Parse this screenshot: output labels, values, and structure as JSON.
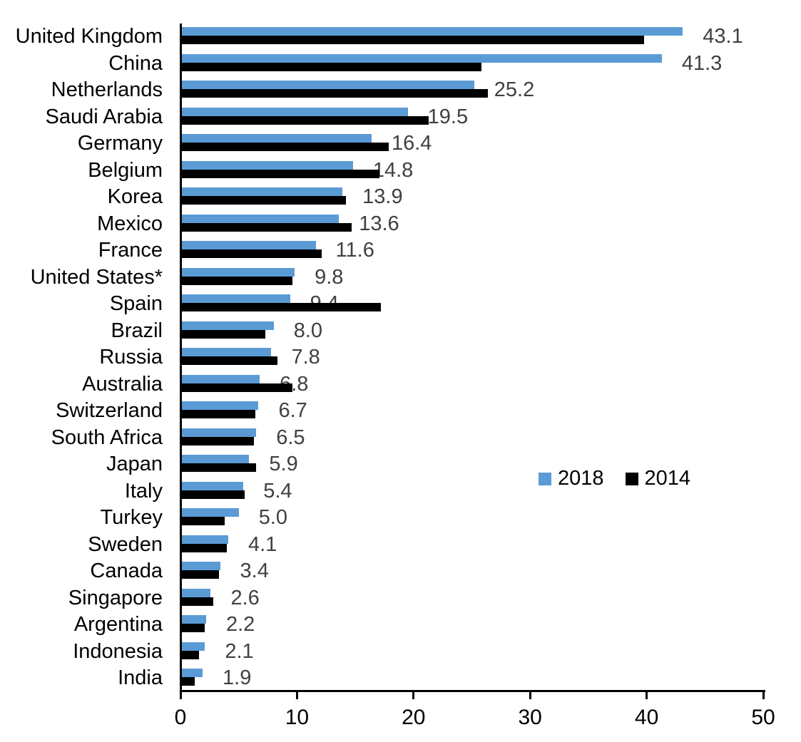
{
  "chart_data": {
    "type": "bar",
    "orientation": "horizontal",
    "title": "",
    "xlabel": "",
    "ylabel": "",
    "xlim": [
      0,
      50
    ],
    "x_ticks": [
      "0",
      "10",
      "20",
      "30",
      "40",
      "50"
    ],
    "grid": false,
    "legend_position": "middle-right",
    "categories": [
      "United Kingdom",
      "China",
      "Netherlands",
      "Saudi Arabia",
      "Germany",
      "Belgium",
      "Korea",
      "Mexico",
      "France",
      "United States*",
      "Spain",
      "Brazil",
      "Russia",
      "Australia",
      "Switzerland",
      "South Africa",
      "Japan",
      "Italy",
      "Turkey",
      "Sweden",
      "Canada",
      "Singapore",
      "Argentina",
      "Indonesia",
      "India"
    ],
    "series": [
      {
        "name": "2018",
        "color": "#5B9BD5",
        "values": [
          43.1,
          41.3,
          25.2,
          19.5,
          16.4,
          14.8,
          13.9,
          13.6,
          11.6,
          9.8,
          9.4,
          8.0,
          7.8,
          6.8,
          6.7,
          6.5,
          5.9,
          5.4,
          5.0,
          4.1,
          3.4,
          2.6,
          2.2,
          2.1,
          1.9
        ]
      },
      {
        "name": "2014",
        "color": "#000000",
        "values": [
          39.8,
          25.8,
          26.4,
          21.3,
          17.9,
          17.1,
          14.2,
          14.7,
          12.1,
          9.6,
          17.2,
          7.3,
          8.3,
          9.6,
          6.4,
          6.3,
          6.5,
          5.5,
          3.8,
          4.0,
          3.3,
          2.8,
          2.1,
          1.6,
          1.2
        ]
      }
    ],
    "data_labels": {
      "series": "2018",
      "values": [
        "43.1",
        "41.3",
        "25.2",
        "19.5",
        "16.4",
        "14.8",
        "13.9",
        "13.6",
        "11.6",
        "9.8",
        "9.4",
        "8.0",
        "7.8",
        "6.8",
        "6.7",
        "6.5",
        "5.9",
        "5.4",
        "5.0",
        "4.1",
        "3.4",
        "2.6",
        "2.2",
        "2.1",
        "1.9"
      ],
      "color": "#404040"
    }
  },
  "colors": {
    "series_2018": "#5B9BD5",
    "series_2014": "#000000",
    "axis": "#000000",
    "background": "#ffffff"
  }
}
